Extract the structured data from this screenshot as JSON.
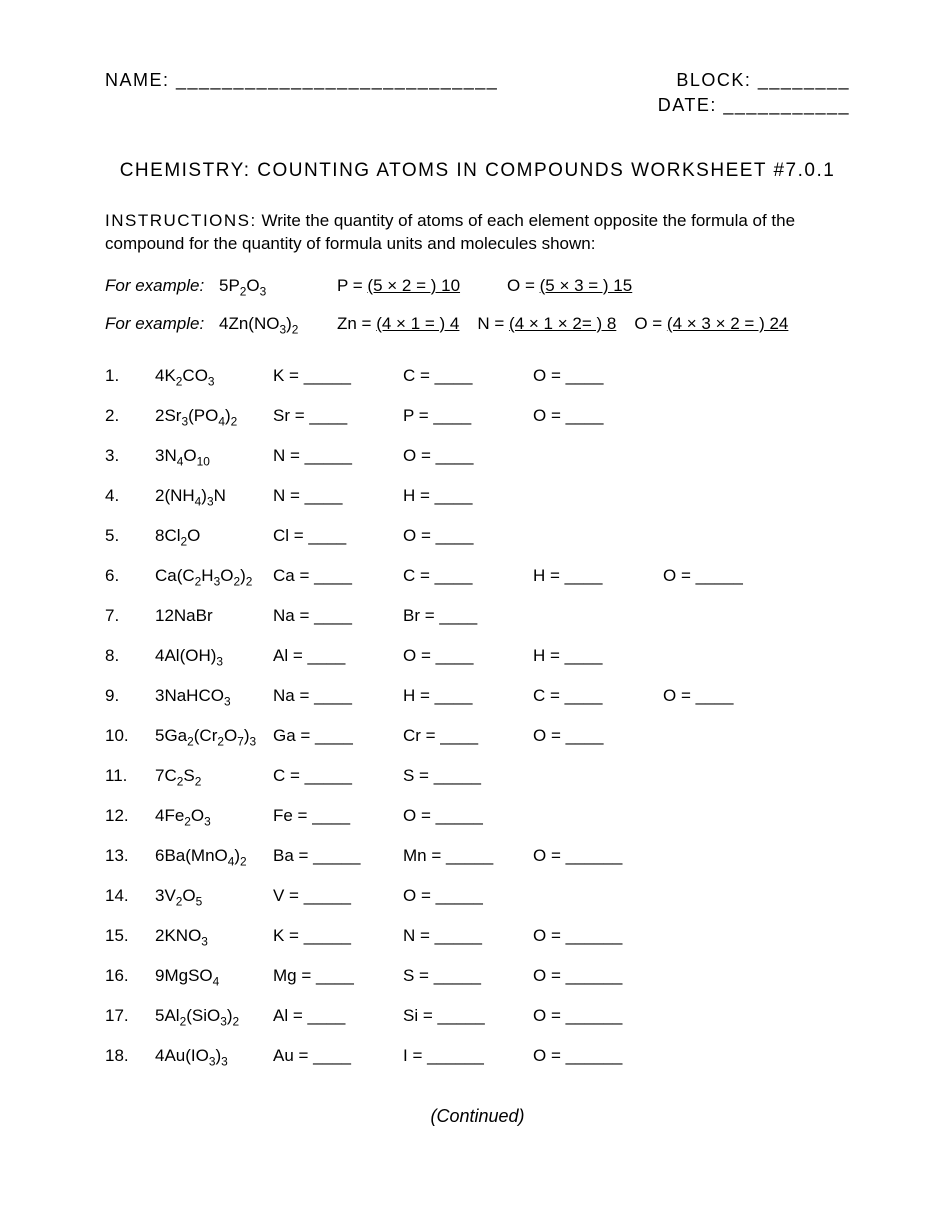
{
  "header": {
    "name_label": "NAME: ____________________________",
    "block_label": "BLOCK: ________",
    "date_label": "DATE: ___________"
  },
  "title": "CHEMISTRY: COUNTING ATOMS IN COMPOUNDS WORKSHEET #7.0.1",
  "instructions_label": "INSTRUCTIONS:",
  "instructions_text": "Write the quantity of atoms of each element opposite the formula of the compound for the quantity of formula units and molecules shown:",
  "example_label": "For example:",
  "ex1_formula": "5P<sub>2</sub>O<sub>3</sub>",
  "ex1_a1": "P = ",
  "ex1_a1u": " (5 × 2 = ) 10 ",
  "ex1_a2": "O = ",
  "ex1_a2u": " (5 × 3 = ) 15 ",
  "ex2_formula": "4Zn(NO<sub>3</sub>)<sub>2</sub>",
  "ex2_a1": "Zn = ",
  "ex2_a1u": "(4 × 1 = ) 4",
  "ex2_a2": "N = ",
  "ex2_a2u": "(4 × 1 × 2= ) 8",
  "ex2_a3": "O = ",
  "ex2_a3u": "(4 × 3 × 2 = ) 24",
  "problems": [
    {
      "n": "1.",
      "f": "4K<sub>2</sub>CO<sub>3</sub>",
      "a": [
        "K = _____",
        "C = ____",
        "O = ____"
      ]
    },
    {
      "n": "2.",
      "f": "2Sr<sub>3</sub>(PO<sub>4</sub>)<sub>2</sub>",
      "a": [
        "Sr = ____",
        "P = ____",
        "O = ____"
      ]
    },
    {
      "n": "3.",
      "f": "3N<sub>4</sub>O<sub>10</sub>",
      "a": [
        "N = _____",
        "O = ____"
      ]
    },
    {
      "n": "4.",
      "f": "2(NH<sub>4</sub>)<sub>3</sub>N",
      "a": [
        "N = ____",
        "H = ____"
      ]
    },
    {
      "n": "5.",
      "f": "8Cl<sub>2</sub>O",
      "a": [
        "Cl = ____",
        "O = ____"
      ]
    },
    {
      "n": "6.",
      "f": "Ca(C<sub>2</sub>H<sub>3</sub>O<sub>2</sub>)<sub>2</sub>",
      "a": [
        "Ca = ____",
        "C = ____",
        "H = ____",
        "O = _____"
      ]
    },
    {
      "n": "7.",
      "f": "12NaBr",
      "a": [
        "Na = ____",
        "Br = ____"
      ]
    },
    {
      "n": "8.",
      "f": "4Al(OH)<sub>3</sub>",
      "a": [
        "Al = ____",
        "O = ____",
        "H = ____"
      ]
    },
    {
      "n": "9.",
      "f": "3NaHCO<sub>3</sub>",
      "a": [
        "Na = ____",
        "H = ____",
        "C = ____",
        "O = ____"
      ]
    },
    {
      "n": "10.",
      "f": "5Ga<sub>2</sub>(Cr<sub>2</sub>O<sub>7</sub>)<sub>3</sub>",
      "a": [
        "Ga = ____",
        "Cr = ____",
        "O = ____"
      ]
    },
    {
      "n": "11.",
      "f": "7C<sub>2</sub>S<sub>2</sub>",
      "a": [
        "C = _____",
        "S = _____"
      ]
    },
    {
      "n": "12.",
      "f": "4Fe<sub>2</sub>O<sub>3</sub>",
      "a": [
        "Fe = ____",
        "O = _____"
      ]
    },
    {
      "n": "13.",
      "f": "6Ba(MnO<sub>4</sub>)<sub>2</sub>",
      "a": [
        "Ba = _____",
        "Mn = _____",
        "O = ______"
      ]
    },
    {
      "n": "14.",
      "f": "3V<sub>2</sub>O<sub>5</sub>",
      "a": [
        "V = _____",
        "O = _____"
      ]
    },
    {
      "n": "15.",
      "f": "2KNO<sub>3</sub>",
      "a": [
        "K = _____",
        "N = _____",
        "O = ______"
      ]
    },
    {
      "n": "16.",
      "f": "9MgSO<sub>4</sub>",
      "a": [
        "Mg = ____",
        "S = _____",
        "O = ______"
      ]
    },
    {
      "n": "17.",
      "f": "5Al<sub>2</sub>(SiO<sub>3</sub>)<sub>2</sub>",
      "a": [
        "Al = ____",
        "Si = _____",
        "O = ______"
      ]
    },
    {
      "n": "18.",
      "f": "4Au(IO<sub>3</sub>)<sub>3</sub>",
      "a": [
        "Au = ____",
        "I = ______",
        "O = ______"
      ]
    }
  ],
  "continued": "(Continued)"
}
